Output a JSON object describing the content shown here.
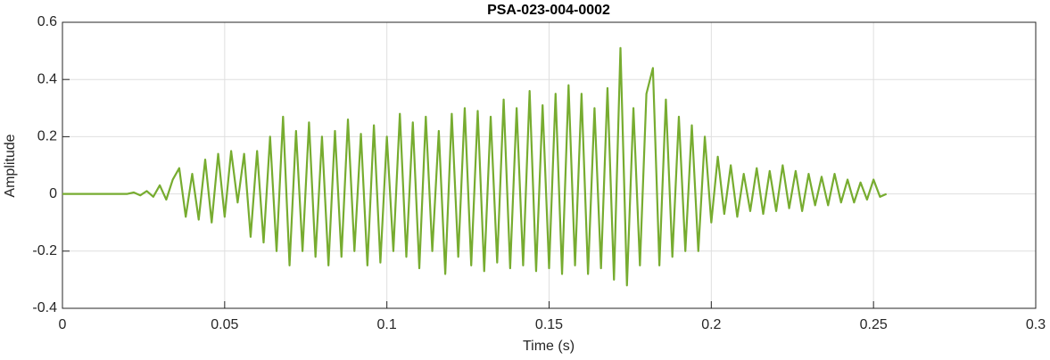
{
  "chart_data": {
    "type": "line",
    "title": "PSA-023-004-0002",
    "xlabel": "Time (s)",
    "ylabel": "Amplitude",
    "x": [
      0,
      0.01,
      0.02,
      0.022,
      0.024,
      0.026,
      0.028,
      0.03,
      0.032,
      0.034,
      0.036,
      0.038,
      0.04,
      0.042,
      0.044,
      0.046,
      0.048,
      0.05,
      0.052,
      0.054,
      0.056,
      0.058,
      0.06,
      0.062,
      0.064,
      0.066,
      0.068,
      0.07,
      0.072,
      0.074,
      0.076,
      0.078,
      0.08,
      0.082,
      0.084,
      0.086,
      0.088,
      0.09,
      0.092,
      0.094,
      0.096,
      0.098,
      0.1,
      0.102,
      0.104,
      0.106,
      0.108,
      0.11,
      0.112,
      0.114,
      0.116,
      0.118,
      0.12,
      0.122,
      0.124,
      0.126,
      0.128,
      0.13,
      0.132,
      0.134,
      0.136,
      0.138,
      0.14,
      0.142,
      0.144,
      0.146,
      0.148,
      0.15,
      0.152,
      0.154,
      0.156,
      0.158,
      0.16,
      0.162,
      0.164,
      0.166,
      0.168,
      0.17,
      0.172,
      0.174,
      0.176,
      0.178,
      0.18,
      0.182,
      0.184,
      0.186,
      0.188,
      0.19,
      0.192,
      0.194,
      0.196,
      0.198,
      0.2,
      0.202,
      0.204,
      0.206,
      0.208,
      0.21,
      0.212,
      0.214,
      0.216,
      0.218,
      0.22,
      0.222,
      0.224,
      0.226,
      0.228,
      0.23,
      0.232,
      0.234,
      0.236,
      0.238,
      0.24,
      0.242,
      0.244,
      0.246,
      0.248,
      0.25,
      0.252,
      0.254
    ],
    "series": [
      {
        "color": "#77ac30",
        "values": [
          0,
          0,
          0,
          0.005,
          -0.005,
          0.01,
          -0.01,
          0.03,
          -0.02,
          0.05,
          0.09,
          -0.08,
          0.07,
          -0.09,
          0.12,
          -0.1,
          0.14,
          -0.08,
          0.15,
          -0.03,
          0.14,
          -0.15,
          0.15,
          -0.17,
          0.2,
          -0.2,
          0.27,
          -0.25,
          0.22,
          -0.2,
          0.25,
          -0.22,
          0.2,
          -0.25,
          0.22,
          -0.22,
          0.26,
          -0.2,
          0.21,
          -0.25,
          0.24,
          -0.24,
          0.2,
          -0.2,
          0.28,
          -0.22,
          0.25,
          -0.26,
          0.27,
          -0.2,
          0.22,
          -0.28,
          0.28,
          -0.22,
          0.3,
          -0.25,
          0.29,
          -0.27,
          0.27,
          -0.24,
          0.33,
          -0.26,
          0.3,
          -0.25,
          0.36,
          -0.27,
          0.31,
          -0.26,
          0.35,
          -0.28,
          0.38,
          -0.25,
          0.35,
          -0.28,
          0.3,
          -0.26,
          0.37,
          -0.3,
          0.51,
          -0.32,
          0.3,
          -0.25,
          0.35,
          0.44,
          -0.25,
          0.33,
          -0.22,
          0.27,
          -0.2,
          0.24,
          -0.2,
          0.2,
          -0.1,
          0.13,
          -0.07,
          0.1,
          -0.08,
          0.07,
          -0.06,
          0.09,
          -0.07,
          0.08,
          -0.06,
          0.1,
          -0.05,
          0.08,
          -0.06,
          0.07,
          -0.04,
          0.06,
          -0.04,
          0.07,
          -0.03,
          0.05,
          -0.03,
          0.04,
          -0.02,
          0.05,
          -0.01,
          0
        ]
      }
    ],
    "xlim": [
      0,
      0.3
    ],
    "xticks": [
      0,
      0.05,
      0.1,
      0.15,
      0.2,
      0.25,
      0.3
    ],
    "ylim": [
      -0.4,
      0.6
    ],
    "yticks": [
      -0.4,
      -0.2,
      0,
      0.2,
      0.4,
      0.6
    ],
    "grid": true
  }
}
